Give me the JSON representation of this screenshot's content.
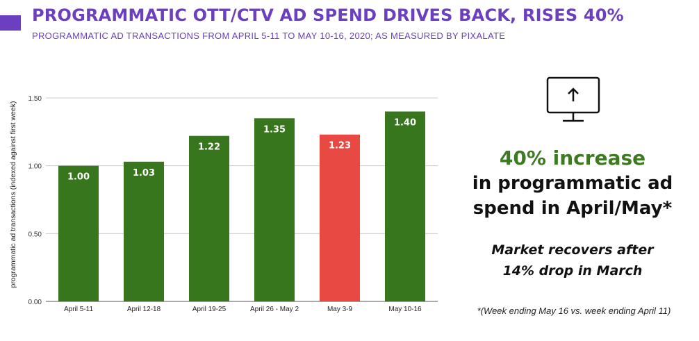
{
  "header": {
    "title": "PROGRAMMATIC OTT/CTV AD SPEND DRIVES BACK, RISES 40%",
    "subtitle": "PROGRAMMATIC AD TRANSACTIONS FROM APRIL 5-11 TO MAY 10-16, 2020; AS MEASURED BY PIXALATE",
    "accent_color": "#6b3fbf"
  },
  "chart_data": {
    "type": "bar",
    "categories": [
      "April 5-11",
      "April 12-18",
      "April 19-25",
      "April 26 - May 2",
      "May 3-9",
      "May 10-16"
    ],
    "values": [
      1.0,
      1.03,
      1.22,
      1.35,
      1.23,
      1.4
    ],
    "data_labels": [
      "1.00",
      "1.03",
      "1.22",
      "1.35",
      "1.23",
      "1.40"
    ],
    "bar_colors": [
      "#38761d",
      "#38761d",
      "#38761d",
      "#38761d",
      "#e84a43",
      "#38761d"
    ],
    "ylabel": "programmatic ad transactions (indexed against first week)",
    "xlabel": "",
    "ylim": [
      0,
      1.5
    ],
    "yticks": [
      0,
      0.5,
      1.0,
      1.5
    ],
    "ytick_labels": [
      "0.00",
      "0.50",
      "1.00",
      "1.50"
    ],
    "grid": true
  },
  "sidebar": {
    "icon": "monitor-up-arrow-icon",
    "stat_highlight": "40% increase",
    "stat_line1": "in programmatic ad",
    "stat_line2": "spend in April/May*",
    "highlight_color": "#3d7a21",
    "recover_line1": "Market recovers after",
    "recover_line2": "14% drop in March",
    "footnote": "*(Week ending May 16 vs. week ending April 11)"
  }
}
